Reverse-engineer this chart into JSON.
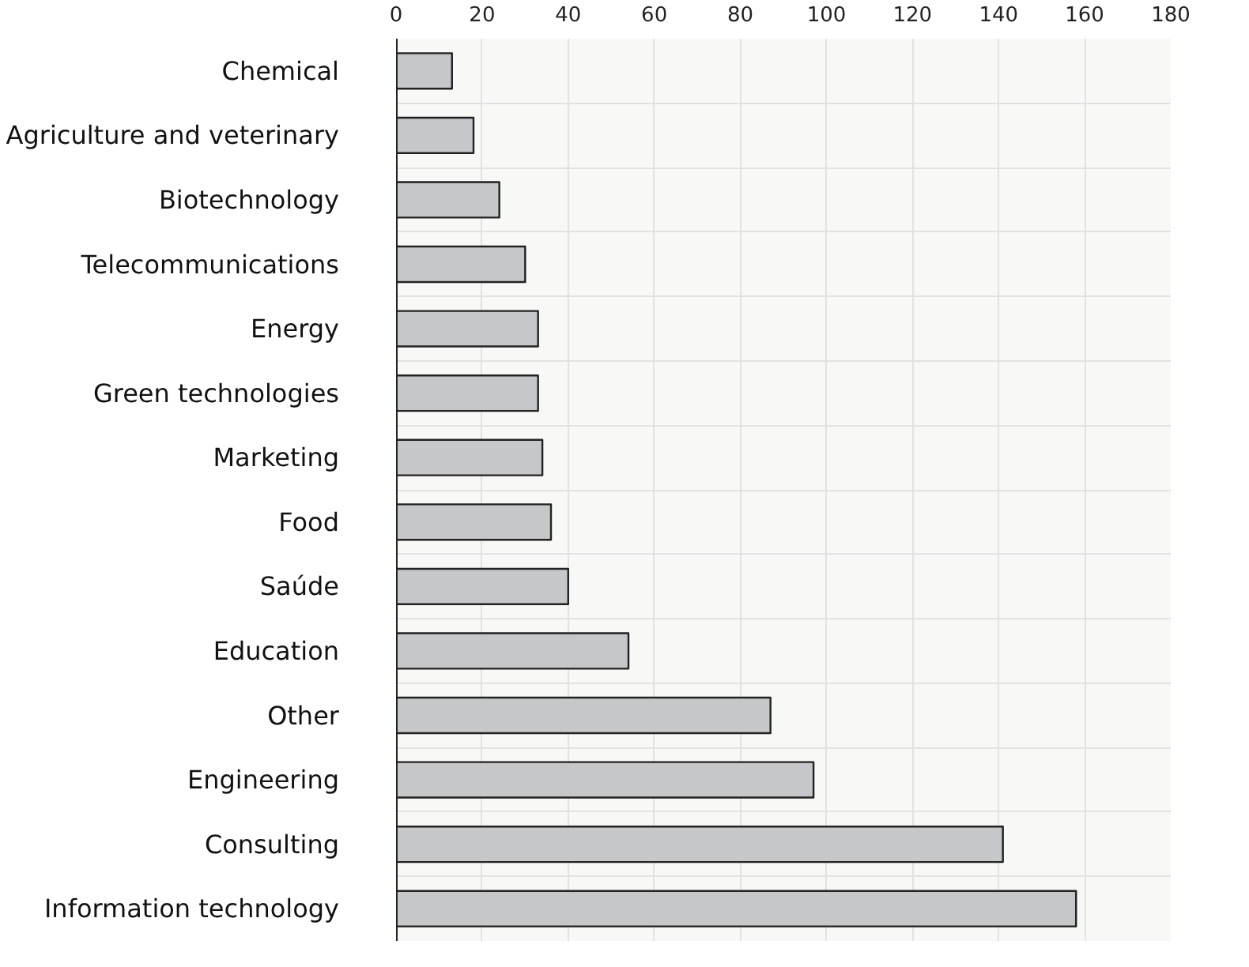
{
  "chart_data": {
    "type": "bar",
    "orientation": "horizontal",
    "categories": [
      "Chemical",
      "Agriculture and veterinary",
      "Biotechnology",
      "Telecommunications",
      "Energy",
      "Green technologies",
      "Marketing",
      "Food",
      "Saúde",
      "Education",
      "Other",
      "Engineering",
      "Consulting",
      "Information technology"
    ],
    "values": [
      13,
      18,
      24,
      30,
      33,
      33,
      34,
      36,
      40,
      54,
      87,
      97,
      141,
      158
    ],
    "color": "#c6c7c9",
    "xlim": [
      0,
      180
    ],
    "xticks": [
      0,
      20,
      40,
      60,
      80,
      100,
      120,
      140,
      160,
      180
    ],
    "grid": true
  }
}
